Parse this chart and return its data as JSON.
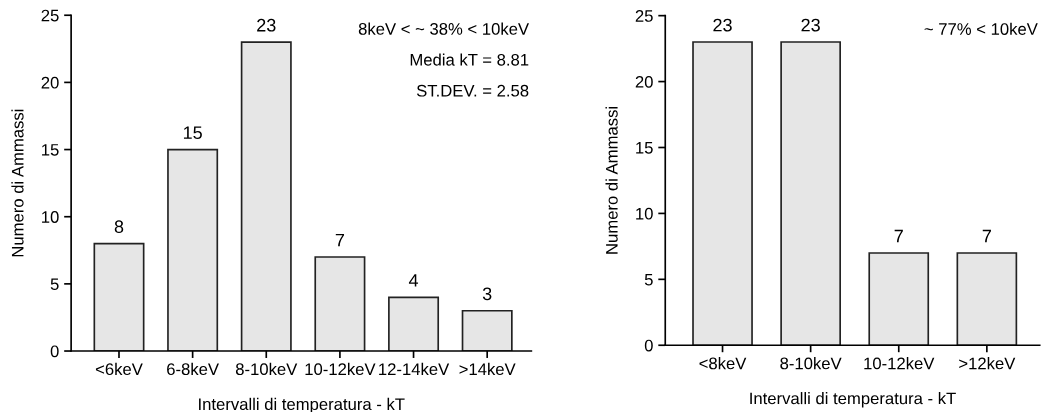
{
  "chart_data": [
    {
      "type": "bar",
      "xlabel": "Intervalli di temperatura - kT",
      "ylabel": "Numero di Ammassi",
      "categories": [
        "<6keV",
        "6-8keV",
        "8-10keV",
        "10-12keV",
        "12-14keV",
        ">14keV"
      ],
      "values": [
        8,
        15,
        23,
        7,
        4,
        3
      ],
      "color": "#e6e6e6",
      "ylim": [
        0,
        25
      ],
      "yticks": [
        0,
        5,
        10,
        15,
        20,
        25
      ],
      "data_labels": true,
      "grid": false,
      "annotations": [
        "8keV < ~ 38% < 10keV",
        "Media kT = 8.81",
        "ST.DEV. = 2.58"
      ]
    },
    {
      "type": "bar",
      "xlabel": "Intervalli di temperatura - kT",
      "ylabel": "Numero di Ammassi",
      "categories": [
        "<8keV",
        "8-10keV",
        "10-12keV",
        ">12keV"
      ],
      "values": [
        23,
        23,
        7,
        7
      ],
      "color": "#e6e6e6",
      "ylim": [
        0,
        25
      ],
      "yticks": [
        0,
        5,
        10,
        15,
        20,
        25
      ],
      "data_labels": true,
      "grid": false,
      "annotations": [
        "~ 77% < 10keV"
      ]
    }
  ]
}
